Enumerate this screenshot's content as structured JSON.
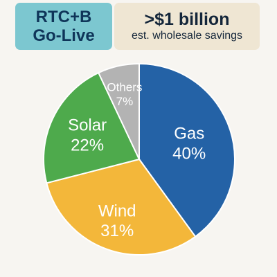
{
  "badges": {
    "golive": {
      "line1": "RTC+B",
      "line2": "Go-Live"
    },
    "savings": {
      "headline": ">$1 billion",
      "subtext": "est. wholesale savings"
    }
  },
  "colors": {
    "Gas": "#2462a6",
    "Wind": "#f3b73a",
    "Solar": "#4eaa4c",
    "Others": "#b3b3b3",
    "outline": "#ffffff"
  },
  "chart_data": {
    "type": "pie",
    "title": "",
    "slices": [
      {
        "label": "Gas",
        "value": 40,
        "value_label": "40%"
      },
      {
        "label": "Wind",
        "value": 31,
        "value_label": "31%"
      },
      {
        "label": "Solar",
        "value": 22,
        "value_label": "22%"
      },
      {
        "label": "Others",
        "value": 7,
        "value_label": "7%"
      }
    ],
    "start": "12 o'clock",
    "direction": "clockwise",
    "labels_inside": true,
    "legend": "none"
  }
}
